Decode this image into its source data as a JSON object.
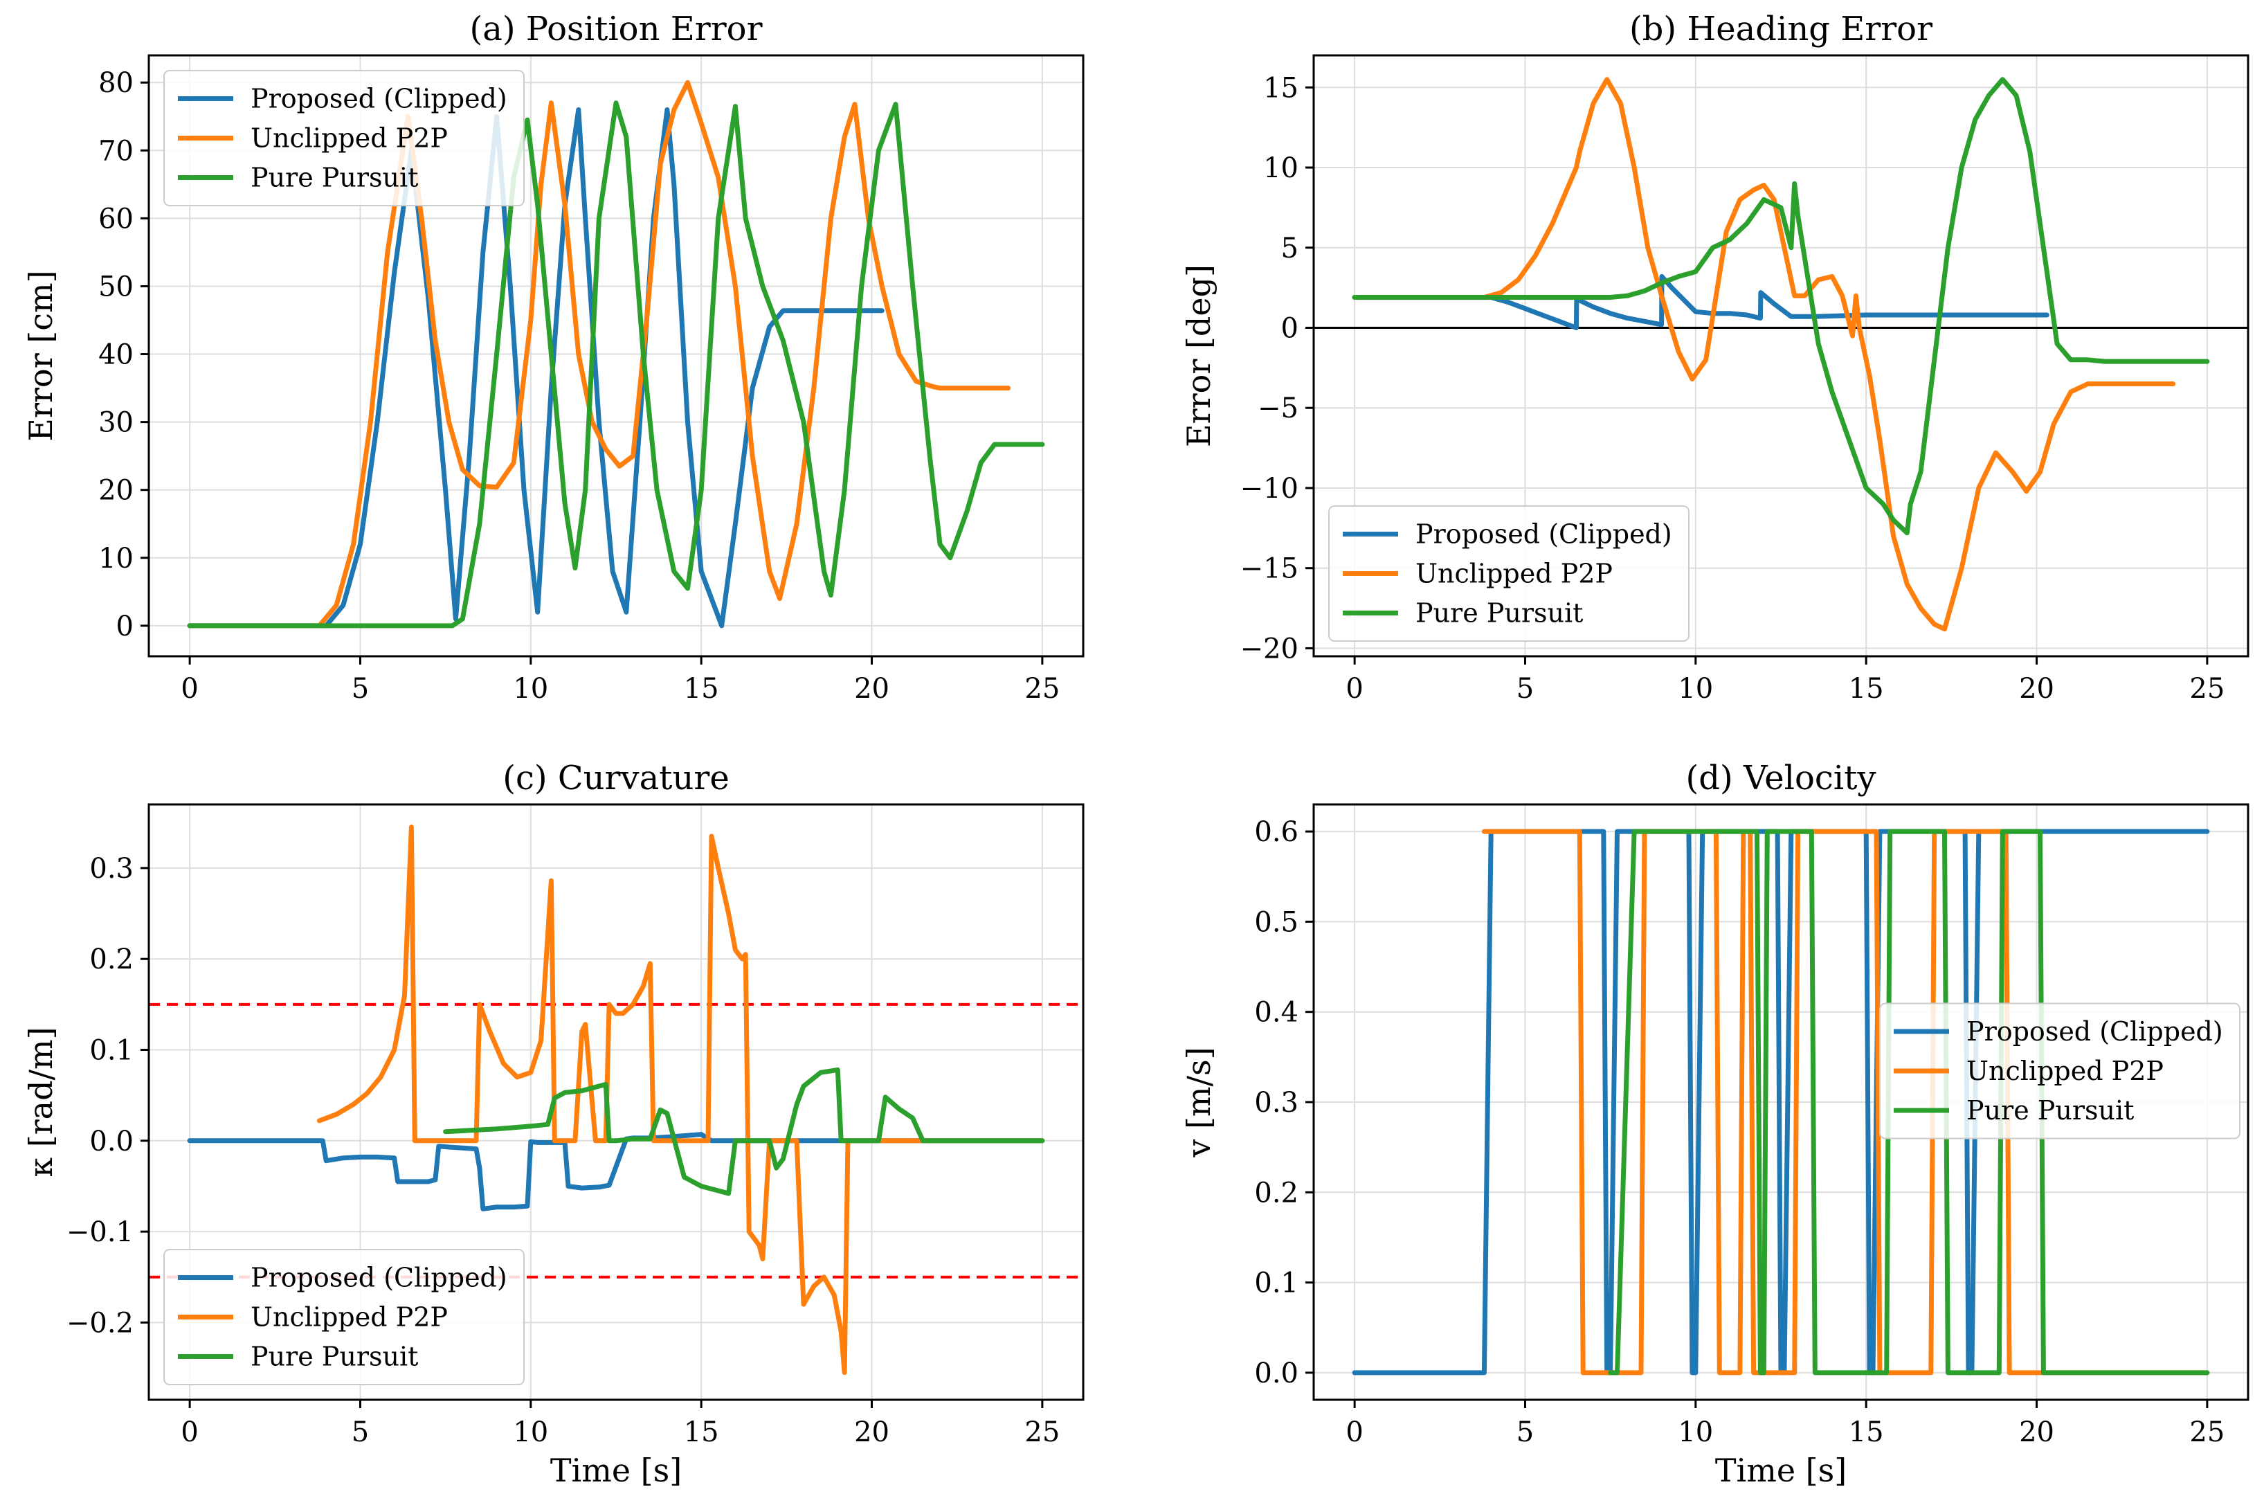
{
  "colors": {
    "proposed": "#1f77b4",
    "unclipped": "#ff7f0e",
    "pure_pursuit": "#2ca02c",
    "limit_line": "#ff0000",
    "zero_line": "#000000",
    "grid": "#dddddd"
  },
  "chart_data": [
    {
      "type": "line",
      "title": "(a) Position Error",
      "xlabel": "",
      "ylabel": "Error [cm]",
      "xlim": [
        -1.2,
        26.2
      ],
      "ylim": [
        -4.5,
        84
      ],
      "xticks": [
        0,
        5,
        10,
        15,
        20,
        25
      ],
      "yticks": [
        0,
        10,
        20,
        30,
        40,
        50,
        60,
        70,
        80
      ],
      "grid": true,
      "legend": "upper-left",
      "series": [
        {
          "name": "Proposed (Clipped)",
          "color": "#1f77b4",
          "x": [
            0,
            4.0,
            4.5,
            5,
            5.5,
            6,
            6.5,
            7,
            7.5,
            7.8,
            8.2,
            8.6,
            9.0,
            9.4,
            9.8,
            10.2,
            10.6,
            11.0,
            11.4,
            11.6,
            12.0,
            12.4,
            12.8,
            13.2,
            13.6,
            14.0,
            14.2,
            14.6,
            15.0,
            15.6,
            16.0,
            16.5,
            17.0,
            17.4,
            18,
            20.3
          ],
          "y": [
            0,
            0,
            3,
            12,
            30,
            52,
            70,
            48,
            20,
            1,
            25,
            55,
            75,
            50,
            20,
            2,
            35,
            62,
            76,
            60,
            30,
            8,
            2,
            30,
            60,
            76,
            65,
            30,
            8,
            0,
            15,
            35,
            44,
            46.4,
            46.4,
            46.4
          ]
        },
        {
          "name": "Unclipped P2P",
          "color": "#ff7f0e",
          "x": [
            0,
            3.8,
            4.3,
            4.8,
            5.3,
            5.8,
            6.4,
            6.8,
            7.2,
            7.6,
            8.0,
            8.5,
            9.0,
            9.5,
            10.0,
            10.3,
            10.6,
            11.0,
            11.4,
            11.8,
            12.2,
            12.6,
            13.0,
            13.4,
            13.8,
            14.2,
            14.6,
            15.0,
            15.5,
            16.0,
            16.5,
            17.0,
            17.3,
            17.8,
            18.3,
            18.8,
            19.2,
            19.5,
            19.9,
            20.3,
            20.8,
            21.3,
            21.8,
            22,
            24
          ],
          "y": [
            0,
            0,
            3,
            12,
            30,
            55,
            75,
            60,
            42,
            30,
            23,
            20.6,
            20.4,
            24,
            45,
            65,
            77,
            62,
            40,
            30,
            26,
            23.5,
            25,
            45,
            68,
            76,
            80,
            74,
            66,
            50,
            25,
            8,
            4,
            15,
            35,
            60,
            72,
            76.8,
            60,
            50,
            40,
            36,
            35.2,
            35,
            35
          ]
        },
        {
          "name": "Pure Pursuit",
          "color": "#2ca02c",
          "x": [
            0,
            7.7,
            8.0,
            8.5,
            9.0,
            9.5,
            9.9,
            10.2,
            10.6,
            11.0,
            11.3,
            11.6,
            12.0,
            12.5,
            12.8,
            13.3,
            13.7,
            14.2,
            14.6,
            15.0,
            15.5,
            16.0,
            16.3,
            16.8,
            17.4,
            18.0,
            18.6,
            18.8,
            19.2,
            19.7,
            20.2,
            20.7,
            21.2,
            21.7,
            22.0,
            22.3,
            22.8,
            23.2,
            23.6,
            24,
            25
          ],
          "y": [
            0,
            0,
            1,
            15,
            40,
            66,
            74.5,
            62,
            40,
            18,
            8.5,
            20,
            60,
            77,
            72,
            40,
            20,
            8,
            5.5,
            20,
            60,
            76.5,
            60,
            50,
            42,
            30,
            8,
            4.5,
            20,
            50,
            70,
            76.8,
            50,
            25,
            12,
            10,
            17,
            24,
            26.7,
            26.7,
            26.7
          ]
        }
      ]
    },
    {
      "type": "line",
      "title": "(b) Heading Error",
      "xlabel": "",
      "ylabel": "Error [deg]",
      "xlim": [
        -1.2,
        26.2
      ],
      "ylim": [
        -20.5,
        17
      ],
      "xticks": [
        0,
        5,
        10,
        15,
        20,
        25
      ],
      "yticks": [
        -20,
        -15,
        -10,
        -5,
        0,
        5,
        10,
        15
      ],
      "grid": true,
      "zero_line": 0,
      "legend": "lower-left",
      "series": [
        {
          "name": "Proposed (Clipped)",
          "color": "#1f77b4",
          "x": [
            0,
            4.0,
            4.5,
            5.0,
            5.5,
            6.0,
            6.5,
            6.51,
            7.0,
            7.5,
            8.0,
            8.5,
            9.0,
            9.01,
            9.3,
            10.0,
            10.5,
            11.0,
            11.5,
            11.9,
            11.91,
            12.3,
            12.8,
            13.5,
            15.0,
            17.0,
            20.3
          ],
          "y": [
            1.9,
            1.9,
            1.6,
            1.2,
            0.8,
            0.4,
            0.0,
            1.8,
            1.3,
            0.9,
            0.6,
            0.4,
            0.2,
            3.2,
            2.5,
            1.0,
            0.9,
            0.9,
            0.8,
            0.6,
            2.2,
            1.5,
            0.7,
            0.7,
            0.8,
            0.8,
            0.8
          ]
        },
        {
          "name": "Unclipped P2P",
          "color": "#ff7f0e",
          "x": [
            0,
            3.8,
            4.3,
            4.8,
            5.3,
            5.8,
            6.2,
            6.5,
            6.6,
            7.0,
            7.4,
            7.8,
            8.2,
            8.6,
            9.0,
            9.5,
            9.9,
            10.3,
            10.6,
            10.9,
            11.3,
            11.7,
            12.0,
            12.3,
            12.6,
            12.9,
            13.2,
            13.6,
            14.0,
            14.3,
            14.6,
            14.7,
            14.8,
            15.1,
            15.4,
            15.8,
            16.2,
            16.6,
            17.0,
            17.3,
            17.8,
            18.3,
            18.8,
            19.3,
            19.7,
            20.1,
            20.5,
            21.0,
            21.5,
            24
          ],
          "y": [
            1.9,
            1.9,
            2.2,
            3.0,
            4.5,
            6.5,
            8.5,
            10.0,
            11.0,
            14.0,
            15.5,
            14.0,
            10.0,
            5.0,
            2.0,
            -1.5,
            -3.2,
            -2.0,
            2.0,
            6.0,
            8.0,
            8.6,
            8.9,
            8.0,
            5.0,
            2.0,
            2.0,
            3.0,
            3.2,
            2.0,
            -0.5,
            2.0,
            0.0,
            -3.0,
            -7.0,
            -13.0,
            -16.0,
            -17.5,
            -18.5,
            -18.8,
            -15.0,
            -10.0,
            -7.8,
            -9.0,
            -10.2,
            -9.0,
            -6.0,
            -4.0,
            -3.5,
            -3.5
          ]
        },
        {
          "name": "Pure Pursuit",
          "color": "#2ca02c",
          "x": [
            0,
            7.5,
            8.0,
            8.5,
            9.0,
            9.5,
            10.0,
            10.5,
            11.0,
            11.5,
            12.0,
            12.5,
            12.8,
            12.9,
            13.0,
            13.3,
            13.6,
            14.0,
            14.5,
            15.0,
            15.5,
            15.8,
            16.2,
            16.3,
            16.6,
            17.0,
            17.4,
            17.8,
            18.2,
            18.6,
            19.0,
            19.4,
            19.8,
            20.2,
            20.6,
            21.0,
            21.5,
            22.0,
            25
          ],
          "y": [
            1.9,
            1.9,
            2.0,
            2.3,
            2.8,
            3.2,
            3.5,
            5.0,
            5.5,
            6.5,
            8.0,
            7.5,
            5.0,
            9.0,
            7.0,
            3.0,
            -1.0,
            -4.0,
            -7.0,
            -10.0,
            -11.0,
            -12.0,
            -12.8,
            -11.0,
            -9.0,
            -2.0,
            5.0,
            10.0,
            13.0,
            14.5,
            15.5,
            14.5,
            11.0,
            5.0,
            -1.0,
            -2.0,
            -2.0,
            -2.1,
            -2.1
          ]
        }
      ]
    },
    {
      "type": "line",
      "title": "(c) Curvature",
      "xlabel": "Time [s]",
      "ylabel": "κ [rad/m]",
      "xlim": [
        -1.2,
        26.2
      ],
      "ylim": [
        -0.285,
        0.37
      ],
      "xticks": [
        0,
        5,
        10,
        15,
        20,
        25
      ],
      "yticks": [
        -0.2,
        -0.1,
        0.0,
        0.1,
        0.2,
        0.3
      ],
      "ytick_labels": [
        "−0.2",
        "−0.1",
        "0.0",
        "0.1",
        "0.2",
        "0.3"
      ],
      "grid": true,
      "limit_lines": [
        0.15,
        -0.15
      ],
      "legend": "lower-left",
      "series": [
        {
          "name": "Proposed (Clipped)",
          "color": "#1f77b4",
          "x": [
            0,
            3.9,
            4.0,
            4.5,
            5.0,
            5.5,
            6.0,
            6.1,
            6.5,
            7.0,
            7.2,
            7.3,
            7.6,
            8.0,
            8.4,
            8.5,
            8.6,
            9.0,
            9.5,
            9.9,
            10.0,
            10.2,
            10.5,
            11.0,
            11.1,
            11.5,
            12.0,
            12.3,
            12.8,
            13.0,
            13.5,
            14.0,
            15.0,
            15.3,
            16.5,
            25
          ],
          "y": [
            0,
            0,
            -0.022,
            -0.019,
            -0.018,
            -0.018,
            -0.019,
            -0.045,
            -0.045,
            -0.045,
            -0.043,
            -0.006,
            -0.007,
            -0.008,
            -0.009,
            -0.03,
            -0.075,
            -0.073,
            -0.073,
            -0.072,
            -0.001,
            -0.002,
            -0.002,
            -0.002,
            -0.05,
            -0.052,
            -0.051,
            -0.049,
            0.002,
            0.003,
            0.003,
            0.004,
            0.007,
            0.0,
            0.0,
            0.0
          ]
        },
        {
          "name": "Unclipped P2P",
          "color": "#ff7f0e",
          "x": [
            3.8,
            4.3,
            4.8,
            5.2,
            5.6,
            6.0,
            6.3,
            6.5,
            6.6,
            7.0,
            8.0,
            8.4,
            8.5,
            8.8,
            9.2,
            9.6,
            10.0,
            10.3,
            10.6,
            10.7,
            11.0,
            11.3,
            11.5,
            11.6,
            11.9,
            12.0,
            12.1,
            12.2,
            12.3,
            12.5,
            12.7,
            13.0,
            13.3,
            13.5,
            13.6,
            14.0,
            14.5,
            15.0,
            15.2,
            15.3,
            15.5,
            15.8,
            16.0,
            16.2,
            16.3,
            16.4,
            16.7,
            16.8,
            17.0,
            17.8,
            18.0,
            18.3,
            18.6,
            18.9,
            19.1,
            19.2,
            19.3,
            20.0,
            21.0,
            25
          ],
          "y": [
            0.022,
            0.029,
            0.04,
            0.052,
            0.07,
            0.1,
            0.16,
            0.345,
            0.0,
            0.0,
            0.0,
            0.0,
            0.15,
            0.12,
            0.085,
            0.07,
            0.075,
            0.11,
            0.286,
            0.0,
            0.0,
            0.0,
            0.12,
            0.128,
            0.0,
            0.0,
            0.0,
            0.0,
            0.15,
            0.14,
            0.14,
            0.15,
            0.17,
            0.195,
            0.0,
            0.0,
            0.0,
            0.0,
            0.0,
            0.335,
            0.3,
            0.25,
            0.21,
            0.2,
            0.205,
            -0.1,
            -0.115,
            -0.13,
            0.0,
            0.0,
            -0.18,
            -0.16,
            -0.15,
            -0.17,
            -0.21,
            -0.255,
            0.0,
            0.0,
            0.0,
            0.0
          ]
        },
        {
          "name": "Pure Pursuit",
          "color": "#2ca02c",
          "x": [
            7.5,
            9.0,
            10.0,
            10.5,
            10.7,
            11.0,
            11.5,
            12.0,
            12.2,
            12.3,
            12.5,
            13.0,
            13.5,
            13.8,
            14.0,
            14.5,
            15.0,
            15.5,
            15.8,
            16.0,
            17.0,
            17.2,
            17.4,
            17.8,
            18.0,
            18.5,
            19.0,
            19.1,
            20.0,
            20.2,
            20.4,
            20.8,
            21.2,
            21.5,
            25
          ],
          "y": [
            0.01,
            0.013,
            0.016,
            0.018,
            0.047,
            0.053,
            0.055,
            0.06,
            0.062,
            0.0,
            0.0,
            0.002,
            0.002,
            0.034,
            0.03,
            -0.04,
            -0.05,
            -0.055,
            -0.058,
            0.0,
            0.0,
            -0.03,
            -0.02,
            0.04,
            0.06,
            0.075,
            0.078,
            0.0,
            0.0,
            0.0,
            0.048,
            0.035,
            0.025,
            0.0,
            0.0
          ]
        }
      ]
    },
    {
      "type": "line",
      "title": "(d) Velocity",
      "xlabel": "Time [s]",
      "ylabel": "v [m/s]",
      "xlim": [
        -1.2,
        26.2
      ],
      "ylim": [
        -0.03,
        0.63
      ],
      "xticks": [
        0,
        5,
        10,
        15,
        20,
        25
      ],
      "yticks": [
        0.0,
        0.1,
        0.2,
        0.3,
        0.4,
        0.5,
        0.6
      ],
      "ytick_labels": [
        "0.0",
        "0.1",
        "0.2",
        "0.3",
        "0.4",
        "0.5",
        "0.6"
      ],
      "grid": true,
      "legend": "center-right",
      "series": [
        {
          "name": "Proposed (Clipped)",
          "color": "#1f77b4",
          "x": [
            0,
            3.8,
            4.0,
            7.3,
            7.4,
            7.5,
            7.7,
            9.8,
            9.9,
            10.0,
            10.2,
            12.4,
            12.5,
            12.6,
            12.8,
            15.0,
            15.1,
            15.2,
            15.4,
            17.9,
            18.0,
            18.1,
            18.3,
            25
          ],
          "y": [
            0,
            0,
            0.6,
            0.6,
            0,
            0,
            0.6,
            0.6,
            0,
            0,
            0.6,
            0.6,
            0,
            0,
            0.6,
            0.6,
            0,
            0,
            0.6,
            0.6,
            0,
            0,
            0.6,
            0.6
          ]
        },
        {
          "name": "Unclipped P2P",
          "color": "#ff7f0e",
          "x": [
            3.8,
            6.6,
            6.7,
            8.4,
            8.5,
            10.6,
            10.7,
            11.3,
            11.4,
            11.6,
            11.7,
            12.9,
            13.0,
            15.3,
            15.4,
            16.9,
            17.0,
            19.1,
            19.2,
            20.0,
            21.0,
            25
          ],
          "y": [
            0.6,
            0.6,
            0,
            0,
            0.6,
            0.6,
            0,
            0,
            0.6,
            0.6,
            0,
            0,
            0.6,
            0.6,
            0,
            0,
            0.6,
            0.6,
            0,
            0,
            0,
            0
          ]
        },
        {
          "name": "Pure Pursuit",
          "color": "#2ca02c",
          "x": [
            7.5,
            7.7,
            8.2,
            11.8,
            11.9,
            12.0,
            12.1,
            13.4,
            13.5,
            15.6,
            15.7,
            17.3,
            17.4,
            18.9,
            19.0,
            20.1,
            20.2,
            21.3,
            21.4,
            25
          ],
          "y": [
            0,
            0,
            0.6,
            0.6,
            0,
            0,
            0.6,
            0.6,
            0,
            0,
            0.6,
            0.6,
            0,
            0,
            0.6,
            0.6,
            0,
            0,
            0,
            0
          ]
        }
      ]
    }
  ]
}
